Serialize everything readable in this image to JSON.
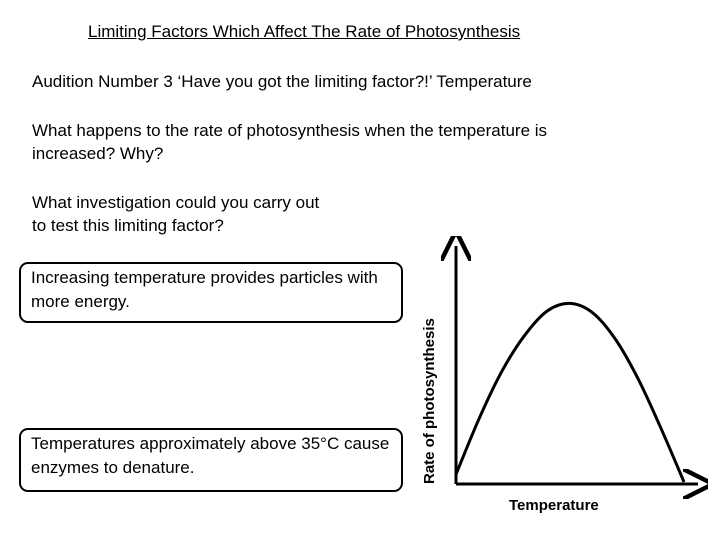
{
  "slide": {
    "title": "Limiting Factors Which Affect The Rate of Photosynthesis",
    "audition": "Audition Number 3 ‘Have you got the limiting factor?!’ Temperature",
    "question1": "What happens to the rate of photosynthesis when the temperature is increased? Why?",
    "question2": "What investigation could you carry out to test this limiting factor?",
    "answer1": "Increasing temperature provides particles with more energy.",
    "answer2": "Temperatures approximately above 35°C cause enzymes to denature."
  },
  "chart_data": {
    "type": "line",
    "xlabel": "Temperature",
    "ylabel": "Rate of photosynthesis",
    "x": [
      0,
      0.1,
      0.2,
      0.3,
      0.4,
      0.5,
      0.6,
      0.7,
      0.8,
      0.9,
      1.0
    ],
    "y": [
      0.04,
      0.33,
      0.58,
      0.77,
      0.9,
      0.94,
      0.89,
      0.75,
      0.54,
      0.28,
      0.0
    ],
    "xlim": [
      0,
      1
    ],
    "ylim": [
      0,
      1
    ],
    "grid": false,
    "axis_color": "#000000",
    "curve_color": "#000000"
  }
}
